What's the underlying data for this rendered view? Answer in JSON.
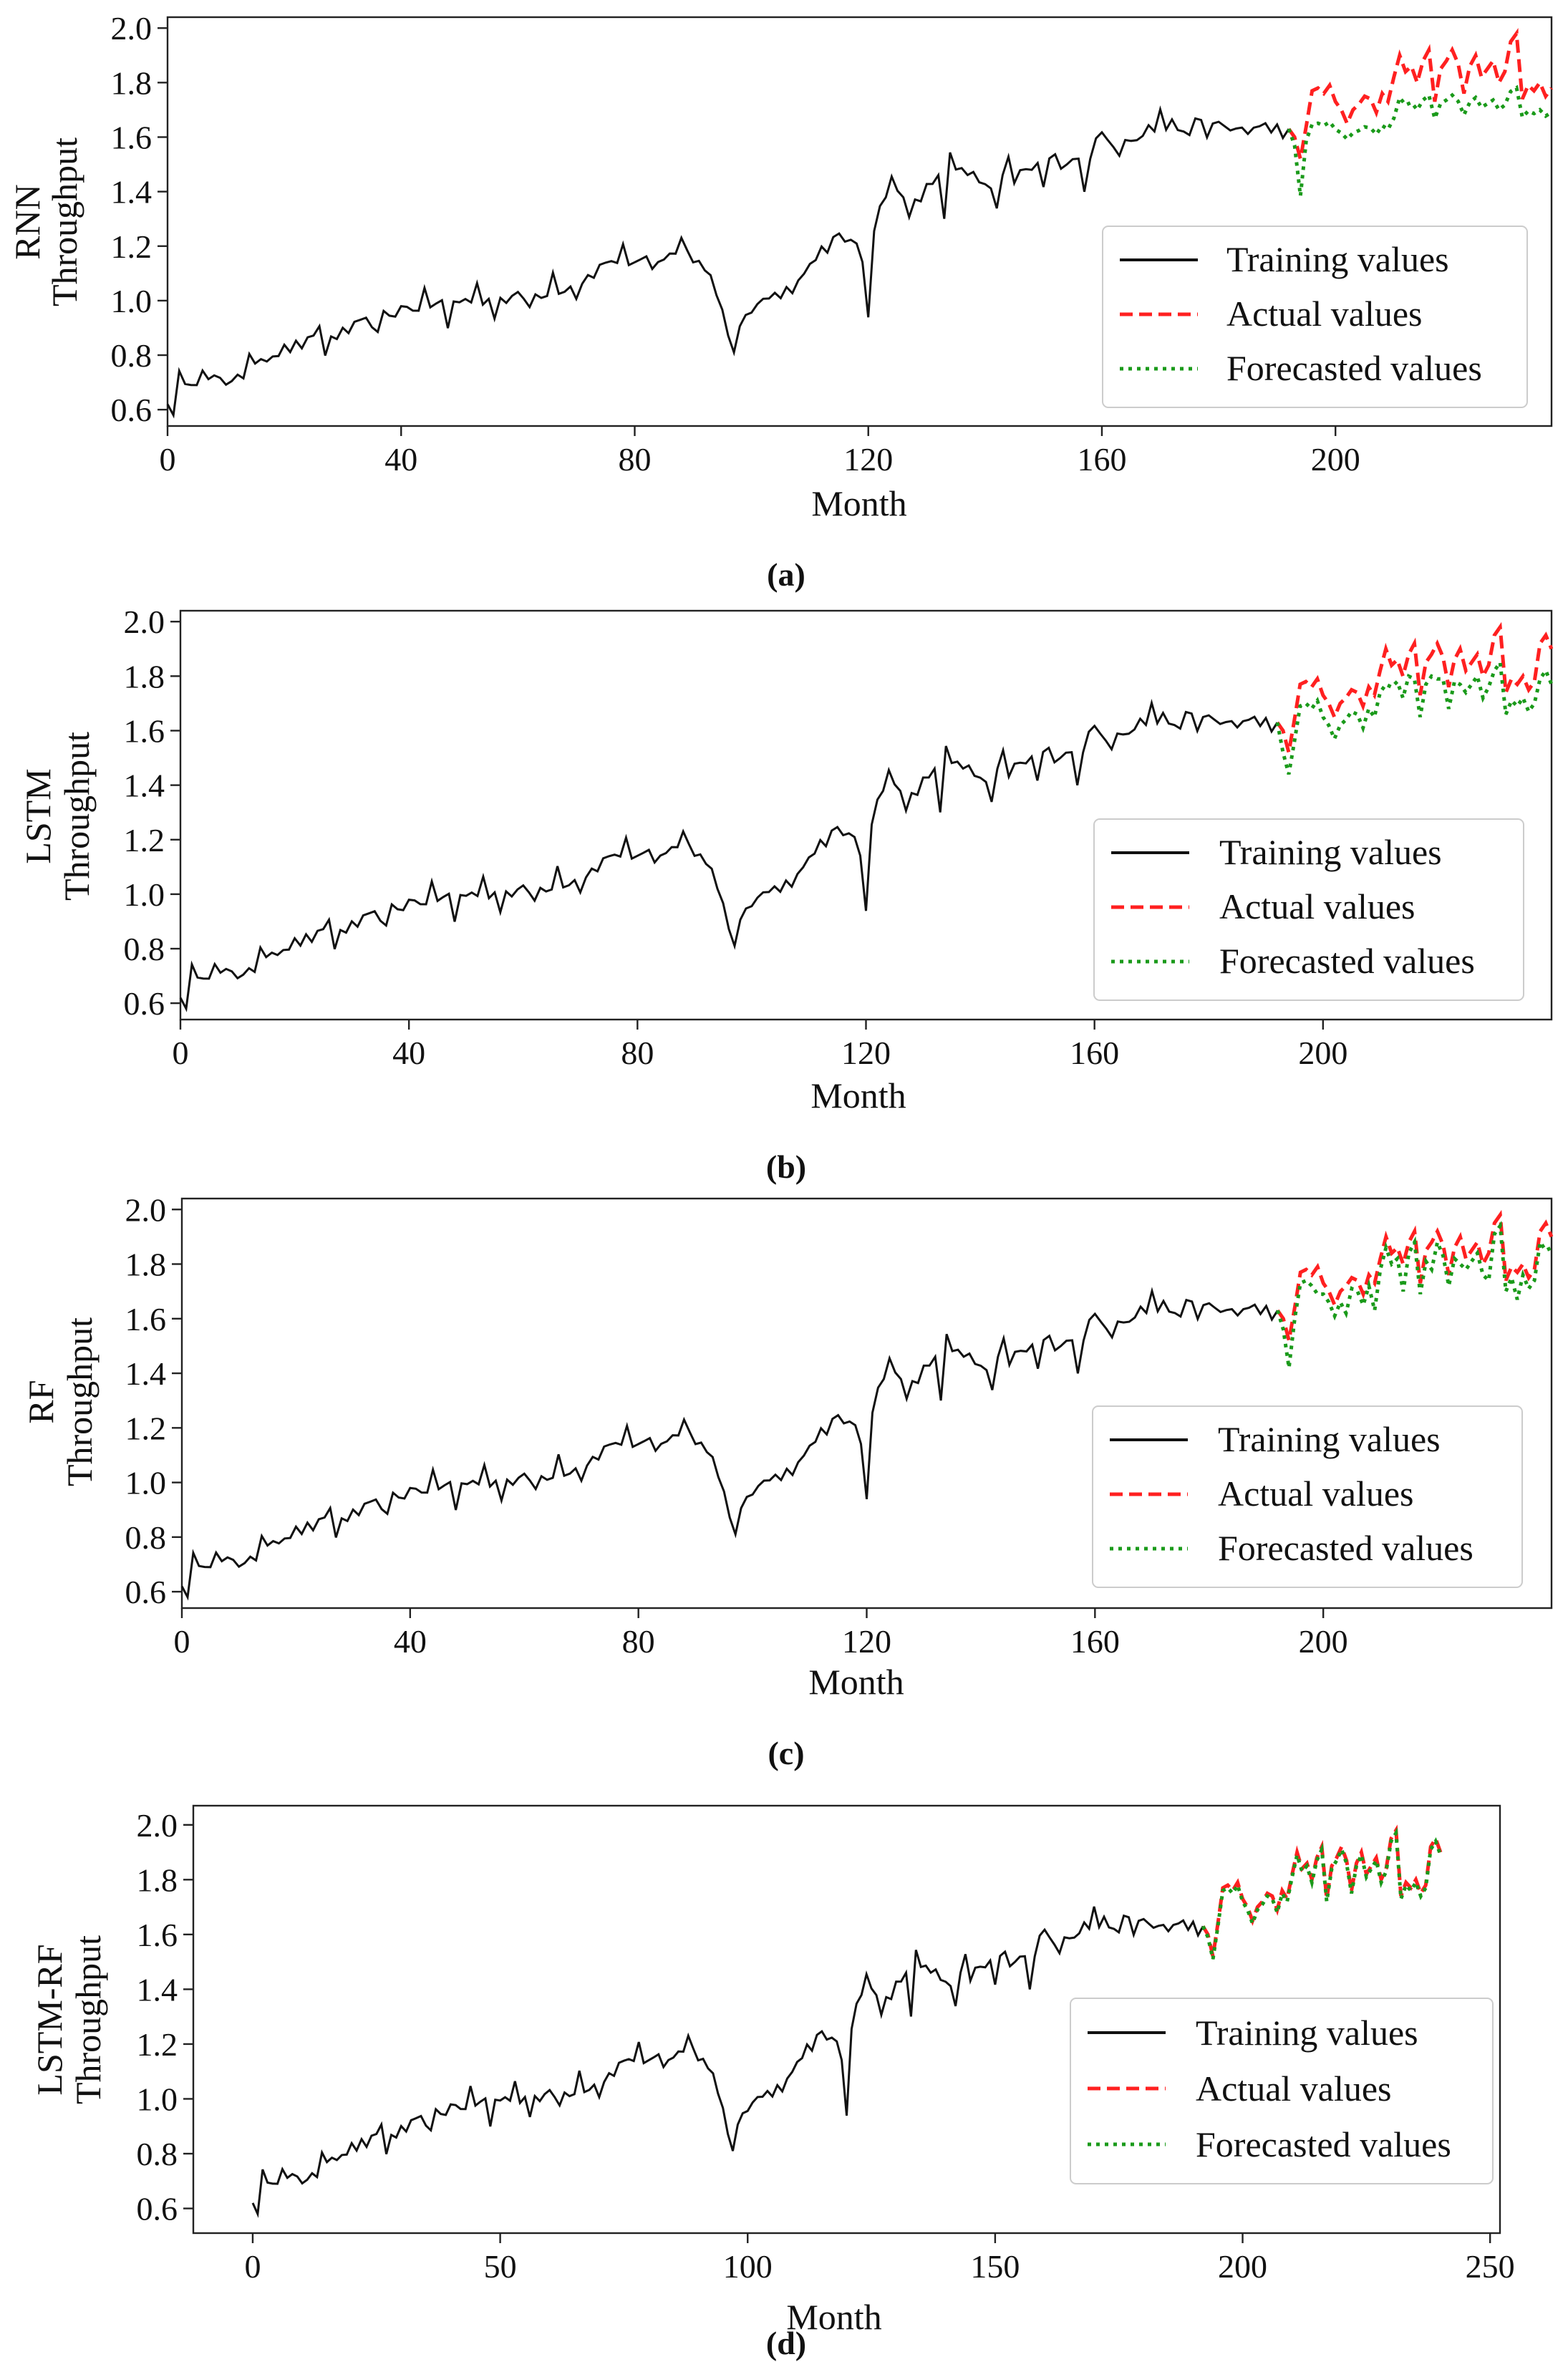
{
  "colors": {
    "training": "#111111",
    "actual": "#ff2020",
    "forecast": "#1a9a1a",
    "frame": "#222222"
  },
  "legend_labels": {
    "training": "Training values",
    "actual": "Actual values",
    "forecast": "Forecasted values"
  },
  "xlabel": "Month",
  "chart_data": [
    {
      "type": "line",
      "id": "a",
      "caption": "(a)",
      "ylabel_top": "RNN",
      "ylabel_bottom": "Throughput",
      "xlabel": "Month",
      "xlim": [
        0,
        237
      ],
      "ylim": [
        0.54,
        2.04
      ],
      "xticks": [
        0,
        40,
        80,
        120,
        160,
        200
      ],
      "yticks": [
        0.6,
        0.8,
        1.0,
        1.2,
        1.4,
        1.6,
        1.8,
        2.0
      ],
      "forecast_style": "rnn",
      "legend": "lower-right",
      "series": [
        {
          "name": "Training values",
          "x_start": 0,
          "x_end": 192
        },
        {
          "name": "Actual values",
          "x_start": 192,
          "x_end": 237
        },
        {
          "name": "Forecasted values",
          "x_start": 192,
          "x_end": 237
        }
      ]
    },
    {
      "type": "line",
      "id": "b",
      "caption": "(b)",
      "ylabel_top": "LSTM",
      "ylabel_bottom": "Throughput",
      "xlabel": "Month",
      "xlim": [
        0,
        240
      ],
      "ylim": [
        0.54,
        2.04
      ],
      "xticks": [
        0,
        40,
        80,
        120,
        160,
        200
      ],
      "yticks": [
        0.6,
        0.8,
        1.0,
        1.2,
        1.4,
        1.6,
        1.8,
        2.0
      ],
      "forecast_style": "lstm",
      "legend": "lower-right",
      "series": [
        {
          "name": "Training values",
          "x_start": 0,
          "x_end": 192
        },
        {
          "name": "Actual values",
          "x_start": 192,
          "x_end": 240
        },
        {
          "name": "Forecasted values",
          "x_start": 192,
          "x_end": 240
        }
      ]
    },
    {
      "type": "line",
      "id": "c",
      "caption": "(c)",
      "ylabel_top": "RF",
      "ylabel_bottom": "Throughput",
      "xlabel": "Month",
      "xlim": [
        0,
        240
      ],
      "ylim": [
        0.54,
        2.04
      ],
      "xticks": [
        0,
        40,
        80,
        120,
        160,
        200
      ],
      "yticks": [
        0.6,
        0.8,
        1.0,
        1.2,
        1.4,
        1.6,
        1.8,
        2.0
      ],
      "forecast_style": "rf",
      "legend": "lower-right",
      "series": [
        {
          "name": "Training values",
          "x_start": 0,
          "x_end": 192
        },
        {
          "name": "Actual values",
          "x_start": 192,
          "x_end": 240
        },
        {
          "name": "Forecasted values",
          "x_start": 192,
          "x_end": 240
        }
      ]
    },
    {
      "type": "line",
      "id": "d",
      "caption": "(d)",
      "ylabel_top": "LSTM-RF",
      "ylabel_bottom": "Throughput",
      "xlabel": "Month",
      "xlim": [
        -12,
        252
      ],
      "ylim": [
        0.51,
        2.07
      ],
      "xticks": [
        0,
        50,
        100,
        150,
        200,
        250
      ],
      "yticks": [
        0.6,
        0.8,
        1.0,
        1.2,
        1.4,
        1.6,
        1.8,
        2.0
      ],
      "forecast_style": "hybrid",
      "legend": "lower-right",
      "series": [
        {
          "name": "Training values",
          "x_start": 0,
          "x_end": 192
        },
        {
          "name": "Actual values",
          "x_start": 192,
          "x_end": 240
        },
        {
          "name": "Forecasted values",
          "x_start": 192,
          "x_end": 240
        }
      ]
    }
  ]
}
